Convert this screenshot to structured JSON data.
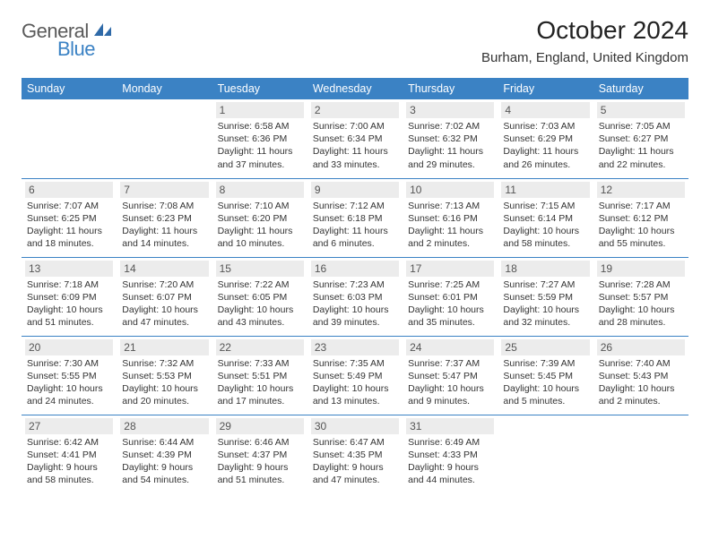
{
  "logo": {
    "text1": "General",
    "text2": "Blue",
    "icon_color": "#2f6aa8"
  },
  "header": {
    "month_title": "October 2024",
    "location": "Burham, England, United Kingdom"
  },
  "calendar": {
    "weekday_labels": [
      "Sunday",
      "Monday",
      "Tuesday",
      "Wednesday",
      "Thursday",
      "Friday",
      "Saturday"
    ],
    "header_bg": "#3b82c4",
    "header_fg": "#ffffff",
    "daynum_bg": "#ececec",
    "daynum_fg": "#555555",
    "border_color": "#3b82c4",
    "text_color": "#333333",
    "cell_fontsize": 10.5,
    "header_fontsize": 12.5,
    "weeks": [
      [
        {
          "empty": true
        },
        {
          "empty": true
        },
        {
          "day": "1",
          "sunrise": "Sunrise: 6:58 AM",
          "sunset": "Sunset: 6:36 PM",
          "daylight1": "Daylight: 11 hours",
          "daylight2": "and 37 minutes."
        },
        {
          "day": "2",
          "sunrise": "Sunrise: 7:00 AM",
          "sunset": "Sunset: 6:34 PM",
          "daylight1": "Daylight: 11 hours",
          "daylight2": "and 33 minutes."
        },
        {
          "day": "3",
          "sunrise": "Sunrise: 7:02 AM",
          "sunset": "Sunset: 6:32 PM",
          "daylight1": "Daylight: 11 hours",
          "daylight2": "and 29 minutes."
        },
        {
          "day": "4",
          "sunrise": "Sunrise: 7:03 AM",
          "sunset": "Sunset: 6:29 PM",
          "daylight1": "Daylight: 11 hours",
          "daylight2": "and 26 minutes."
        },
        {
          "day": "5",
          "sunrise": "Sunrise: 7:05 AM",
          "sunset": "Sunset: 6:27 PM",
          "daylight1": "Daylight: 11 hours",
          "daylight2": "and 22 minutes."
        }
      ],
      [
        {
          "day": "6",
          "sunrise": "Sunrise: 7:07 AM",
          "sunset": "Sunset: 6:25 PM",
          "daylight1": "Daylight: 11 hours",
          "daylight2": "and 18 minutes."
        },
        {
          "day": "7",
          "sunrise": "Sunrise: 7:08 AM",
          "sunset": "Sunset: 6:23 PM",
          "daylight1": "Daylight: 11 hours",
          "daylight2": "and 14 minutes."
        },
        {
          "day": "8",
          "sunrise": "Sunrise: 7:10 AM",
          "sunset": "Sunset: 6:20 PM",
          "daylight1": "Daylight: 11 hours",
          "daylight2": "and 10 minutes."
        },
        {
          "day": "9",
          "sunrise": "Sunrise: 7:12 AM",
          "sunset": "Sunset: 6:18 PM",
          "daylight1": "Daylight: 11 hours",
          "daylight2": "and 6 minutes."
        },
        {
          "day": "10",
          "sunrise": "Sunrise: 7:13 AM",
          "sunset": "Sunset: 6:16 PM",
          "daylight1": "Daylight: 11 hours",
          "daylight2": "and 2 minutes."
        },
        {
          "day": "11",
          "sunrise": "Sunrise: 7:15 AM",
          "sunset": "Sunset: 6:14 PM",
          "daylight1": "Daylight: 10 hours",
          "daylight2": "and 58 minutes."
        },
        {
          "day": "12",
          "sunrise": "Sunrise: 7:17 AM",
          "sunset": "Sunset: 6:12 PM",
          "daylight1": "Daylight: 10 hours",
          "daylight2": "and 55 minutes."
        }
      ],
      [
        {
          "day": "13",
          "sunrise": "Sunrise: 7:18 AM",
          "sunset": "Sunset: 6:09 PM",
          "daylight1": "Daylight: 10 hours",
          "daylight2": "and 51 minutes."
        },
        {
          "day": "14",
          "sunrise": "Sunrise: 7:20 AM",
          "sunset": "Sunset: 6:07 PM",
          "daylight1": "Daylight: 10 hours",
          "daylight2": "and 47 minutes."
        },
        {
          "day": "15",
          "sunrise": "Sunrise: 7:22 AM",
          "sunset": "Sunset: 6:05 PM",
          "daylight1": "Daylight: 10 hours",
          "daylight2": "and 43 minutes."
        },
        {
          "day": "16",
          "sunrise": "Sunrise: 7:23 AM",
          "sunset": "Sunset: 6:03 PM",
          "daylight1": "Daylight: 10 hours",
          "daylight2": "and 39 minutes."
        },
        {
          "day": "17",
          "sunrise": "Sunrise: 7:25 AM",
          "sunset": "Sunset: 6:01 PM",
          "daylight1": "Daylight: 10 hours",
          "daylight2": "and 35 minutes."
        },
        {
          "day": "18",
          "sunrise": "Sunrise: 7:27 AM",
          "sunset": "Sunset: 5:59 PM",
          "daylight1": "Daylight: 10 hours",
          "daylight2": "and 32 minutes."
        },
        {
          "day": "19",
          "sunrise": "Sunrise: 7:28 AM",
          "sunset": "Sunset: 5:57 PM",
          "daylight1": "Daylight: 10 hours",
          "daylight2": "and 28 minutes."
        }
      ],
      [
        {
          "day": "20",
          "sunrise": "Sunrise: 7:30 AM",
          "sunset": "Sunset: 5:55 PM",
          "daylight1": "Daylight: 10 hours",
          "daylight2": "and 24 minutes."
        },
        {
          "day": "21",
          "sunrise": "Sunrise: 7:32 AM",
          "sunset": "Sunset: 5:53 PM",
          "daylight1": "Daylight: 10 hours",
          "daylight2": "and 20 minutes."
        },
        {
          "day": "22",
          "sunrise": "Sunrise: 7:33 AM",
          "sunset": "Sunset: 5:51 PM",
          "daylight1": "Daylight: 10 hours",
          "daylight2": "and 17 minutes."
        },
        {
          "day": "23",
          "sunrise": "Sunrise: 7:35 AM",
          "sunset": "Sunset: 5:49 PM",
          "daylight1": "Daylight: 10 hours",
          "daylight2": "and 13 minutes."
        },
        {
          "day": "24",
          "sunrise": "Sunrise: 7:37 AM",
          "sunset": "Sunset: 5:47 PM",
          "daylight1": "Daylight: 10 hours",
          "daylight2": "and 9 minutes."
        },
        {
          "day": "25",
          "sunrise": "Sunrise: 7:39 AM",
          "sunset": "Sunset: 5:45 PM",
          "daylight1": "Daylight: 10 hours",
          "daylight2": "and 5 minutes."
        },
        {
          "day": "26",
          "sunrise": "Sunrise: 7:40 AM",
          "sunset": "Sunset: 5:43 PM",
          "daylight1": "Daylight: 10 hours",
          "daylight2": "and 2 minutes."
        }
      ],
      [
        {
          "day": "27",
          "sunrise": "Sunrise: 6:42 AM",
          "sunset": "Sunset: 4:41 PM",
          "daylight1": "Daylight: 9 hours",
          "daylight2": "and 58 minutes."
        },
        {
          "day": "28",
          "sunrise": "Sunrise: 6:44 AM",
          "sunset": "Sunset: 4:39 PM",
          "daylight1": "Daylight: 9 hours",
          "daylight2": "and 54 minutes."
        },
        {
          "day": "29",
          "sunrise": "Sunrise: 6:46 AM",
          "sunset": "Sunset: 4:37 PM",
          "daylight1": "Daylight: 9 hours",
          "daylight2": "and 51 minutes."
        },
        {
          "day": "30",
          "sunrise": "Sunrise: 6:47 AM",
          "sunset": "Sunset: 4:35 PM",
          "daylight1": "Daylight: 9 hours",
          "daylight2": "and 47 minutes."
        },
        {
          "day": "31",
          "sunrise": "Sunrise: 6:49 AM",
          "sunset": "Sunset: 4:33 PM",
          "daylight1": "Daylight: 9 hours",
          "daylight2": "and 44 minutes."
        },
        {
          "empty": true
        },
        {
          "empty": true
        }
      ]
    ]
  }
}
